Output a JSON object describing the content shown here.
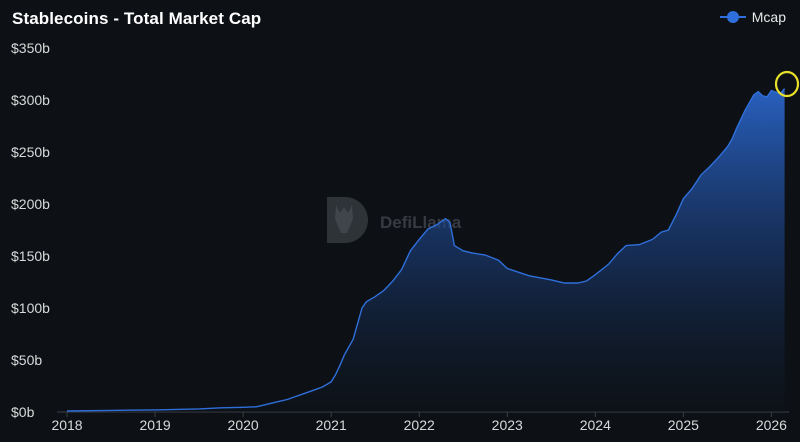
{
  "chart_data": {
    "type": "area",
    "title": "Stablecoins - Total Market Cap",
    "xlabel": "",
    "ylabel": "",
    "xlim": [
      2017.92,
      2026.2
    ],
    "ylim": [
      0,
      350
    ],
    "y_ticks": [
      "$0b",
      "$50b",
      "$100b",
      "$150b",
      "$200b",
      "$250b",
      "$300b",
      "$350b"
    ],
    "y_tick_values": [
      0,
      50,
      100,
      150,
      200,
      250,
      300,
      350
    ],
    "x_ticks": [
      "2018",
      "2019",
      "2020",
      "2021",
      "2022",
      "2023",
      "2024",
      "2025",
      "2026"
    ],
    "x_tick_values": [
      2018,
      2019,
      2020,
      2021,
      2022,
      2023,
      2024,
      2025,
      2026
    ],
    "legend_position": "top-right",
    "grid": false,
    "series": [
      {
        "name": "Mcap",
        "color": "#2f6fdb",
        "points": [
          [
            2018.0,
            1.0
          ],
          [
            2018.5,
            1.5
          ],
          [
            2019.0,
            2.0
          ],
          [
            2019.25,
            2.5
          ],
          [
            2019.5,
            3.0
          ],
          [
            2019.75,
            4.0
          ],
          [
            2020.0,
            4.5
          ],
          [
            2020.15,
            5.0
          ],
          [
            2020.2,
            6.0
          ],
          [
            2020.3,
            8.0
          ],
          [
            2020.4,
            10.0
          ],
          [
            2020.5,
            12.0
          ],
          [
            2020.6,
            15.0
          ],
          [
            2020.7,
            18.0
          ],
          [
            2020.8,
            21.0
          ],
          [
            2020.9,
            24.0
          ],
          [
            2021.0,
            29.0
          ],
          [
            2021.05,
            36.0
          ],
          [
            2021.1,
            45.0
          ],
          [
            2021.15,
            55.0
          ],
          [
            2021.25,
            70.0
          ],
          [
            2021.3,
            85.0
          ],
          [
            2021.35,
            100.0
          ],
          [
            2021.4,
            106.0
          ],
          [
            2021.5,
            111.0
          ],
          [
            2021.6,
            117.0
          ],
          [
            2021.7,
            126.0
          ],
          [
            2021.8,
            137.0
          ],
          [
            2021.9,
            155.0
          ],
          [
            2022.0,
            166.0
          ],
          [
            2022.1,
            176.0
          ],
          [
            2022.2,
            180.0
          ],
          [
            2022.3,
            186.0
          ],
          [
            2022.35,
            182.0
          ],
          [
            2022.4,
            160.0
          ],
          [
            2022.5,
            155.0
          ],
          [
            2022.6,
            153.0
          ],
          [
            2022.75,
            151.0
          ],
          [
            2022.9,
            146.0
          ],
          [
            2023.0,
            138.0
          ],
          [
            2023.25,
            131.0
          ],
          [
            2023.5,
            127.0
          ],
          [
            2023.65,
            124.0
          ],
          [
            2023.8,
            124.0
          ],
          [
            2023.9,
            126.0
          ],
          [
            2024.0,
            132.0
          ],
          [
            2024.15,
            142.0
          ],
          [
            2024.25,
            152.0
          ],
          [
            2024.35,
            160.0
          ],
          [
            2024.5,
            161.0
          ],
          [
            2024.65,
            166.0
          ],
          [
            2024.75,
            173.0
          ],
          [
            2024.83,
            175.0
          ],
          [
            2024.92,
            190.0
          ],
          [
            2025.0,
            205.0
          ],
          [
            2025.1,
            215.0
          ],
          [
            2025.2,
            228.0
          ],
          [
            2025.3,
            236.0
          ],
          [
            2025.4,
            245.0
          ],
          [
            2025.5,
            255.0
          ],
          [
            2025.55,
            262.0
          ],
          [
            2025.6,
            272.0
          ],
          [
            2025.7,
            290.0
          ],
          [
            2025.8,
            305.0
          ],
          [
            2025.85,
            308.0
          ],
          [
            2025.9,
            304.0
          ],
          [
            2025.95,
            303.0
          ],
          [
            2026.0,
            309.0
          ],
          [
            2026.1,
            306.0
          ],
          [
            2026.15,
            311.0
          ]
        ]
      }
    ]
  },
  "legend": {
    "label": "Mcap",
    "color": "#2f6fdb"
  },
  "watermark": {
    "text": "DefiLlama"
  },
  "highlight": {
    "color": "#e8e02a"
  }
}
